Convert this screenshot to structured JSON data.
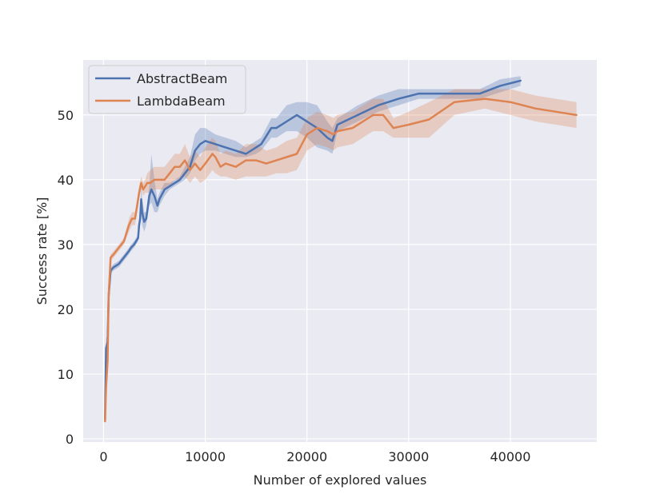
{
  "chart_data": {
    "type": "line",
    "title": "",
    "xlabel": "Number of explored values",
    "ylabel": "Success rate [%]",
    "xlim": [
      -2000,
      48500
    ],
    "ylim": [
      -0.5,
      58.5
    ],
    "xticks": [
      0,
      10000,
      20000,
      30000,
      40000
    ],
    "xtick_labels": [
      "0",
      "10000",
      "20000",
      "30000",
      "40000"
    ],
    "yticks": [
      0,
      10,
      20,
      30,
      40,
      50
    ],
    "ytick_labels": [
      "0",
      "10",
      "20",
      "30",
      "40",
      "50"
    ],
    "grid": true,
    "legend_position": "top-left",
    "series": [
      {
        "name": "AbstractBeam",
        "color": "#4c72b0",
        "x": [
          150,
          250,
          400,
          500,
          700,
          1000,
          1500,
          2000,
          2500,
          2700,
          3000,
          3200,
          3400,
          3500,
          3600,
          3700,
          3800,
          4000,
          4200,
          4500,
          4700,
          5000,
          5300,
          5500,
          6000,
          6500,
          7000,
          7500,
          8000,
          8500,
          9000,
          9500,
          10000,
          11000,
          12000,
          13000,
          14000,
          15000,
          15500,
          16500,
          17000,
          18000,
          19000,
          20000,
          21000,
          22000,
          22500,
          23000,
          25000,
          27000,
          29000,
          31000,
          33000,
          35000,
          37000,
          39000,
          41000
        ],
        "y": [
          3,
          14,
          15,
          22,
          26,
          26.5,
          27,
          28,
          29,
          29.5,
          30,
          30.5,
          31,
          33,
          34,
          37,
          35,
          33.5,
          34,
          37.5,
          38.5,
          37.5,
          36,
          37,
          38.5,
          39,
          39.5,
          40,
          41,
          42,
          44.5,
          45.5,
          46,
          45.5,
          45,
          44.5,
          44,
          45,
          45.5,
          48,
          48,
          49,
          50,
          49,
          48,
          46.5,
          46,
          48.5,
          50,
          51.5,
          52.5,
          53.3,
          53.3,
          53.3,
          53.3,
          54.5,
          55.3
        ],
        "lower": [
          2.5,
          12.5,
          14,
          21,
          25.5,
          26,
          26.5,
          27.5,
          28.5,
          29,
          29.5,
          30,
          30.5,
          32,
          33,
          35,
          33,
          32,
          33,
          36,
          36.5,
          35,
          35,
          36,
          37.5,
          38.5,
          39,
          39.5,
          40,
          41,
          43,
          44,
          44.5,
          44.5,
          44,
          43.5,
          43.5,
          44,
          44.5,
          46.5,
          46.5,
          47.5,
          47.5,
          46.5,
          45,
          44.5,
          44,
          47.5,
          49,
          50.5,
          51.5,
          52.5,
          52.5,
          52.5,
          52.5,
          53.5,
          54.5
        ],
        "upper": [
          3.5,
          15.5,
          16,
          23,
          26.5,
          27,
          27.5,
          28.5,
          29.5,
          30,
          30.5,
          31,
          31.5,
          34,
          35.5,
          39,
          37,
          35,
          35,
          39,
          44,
          40,
          37,
          38,
          39.5,
          39.5,
          40,
          40.5,
          42,
          43.5,
          47,
          48,
          48,
          47,
          46.5,
          46,
          45,
          46,
          46.5,
          49.5,
          49.5,
          51.5,
          52,
          52,
          51.5,
          49,
          48,
          49.5,
          51.5,
          53,
          54,
          54,
          54,
          54,
          54,
          55.5,
          56
        ]
      },
      {
        "name": "LambdaBeam",
        "color": "#dd8452",
        "x": [
          150,
          250,
          400,
          500,
          700,
          1000,
          1500,
          2000,
          2500,
          2800,
          3100,
          3300,
          3500,
          3700,
          3900,
          4100,
          4300,
          4600,
          5000,
          5500,
          6000,
          6500,
          7000,
          7500,
          8000,
          8500,
          9000,
          9500,
          10000,
          10700,
          11000,
          11500,
          12000,
          13000,
          14000,
          15000,
          16000,
          17000,
          18000,
          19000,
          20000,
          21000,
          22000,
          22600,
          23000,
          24500,
          26500,
          27500,
          28500,
          30000,
          32000,
          34500,
          37500,
          40000,
          42500,
          44500,
          46500
        ],
        "y": [
          2.7,
          8,
          12,
          22,
          28,
          28.5,
          29.5,
          30.5,
          33,
          34,
          34,
          36,
          38,
          39.5,
          38.5,
          39,
          39.5,
          39.5,
          40,
          40,
          40,
          41,
          42,
          42,
          43,
          41.5,
          42.5,
          41.5,
          42.5,
          44,
          43.5,
          42,
          42.5,
          42,
          43,
          43,
          42.5,
          43,
          43.5,
          44,
          47,
          48,
          47.5,
          47,
          47.5,
          48,
          50,
          50,
          48,
          48.5,
          49.3,
          52,
          52.5,
          52,
          51,
          50.5,
          50
        ],
        "lower": [
          2,
          7,
          11,
          21,
          27.5,
          28,
          29,
          30,
          32,
          33,
          33,
          35,
          37,
          38.5,
          37.5,
          38,
          38,
          38,
          38.5,
          38.5,
          38.5,
          39,
          40,
          40,
          40.5,
          39.5,
          40.5,
          39.5,
          40,
          41.5,
          41,
          40.5,
          40.5,
          40,
          40.5,
          40.5,
          40.5,
          41,
          41,
          41.5,
          44.5,
          45.5,
          45,
          44.5,
          45,
          45.5,
          47.5,
          47.5,
          46.5,
          46.5,
          46.5,
          50,
          51,
          50,
          49,
          48.5,
          48
        ],
        "upper": [
          3.5,
          9,
          13,
          23,
          28.5,
          29,
          30,
          31,
          34,
          35,
          35,
          37,
          39,
          40.5,
          39.5,
          40,
          41,
          41.5,
          42,
          42,
          42,
          43,
          44,
          44,
          45.5,
          43.5,
          44.5,
          43.5,
          45,
          46.5,
          46,
          44,
          44.5,
          44,
          45.5,
          45.5,
          44.5,
          45,
          46,
          46.5,
          49.5,
          50.5,
          50,
          49.5,
          50,
          50.5,
          52.5,
          52.5,
          49.5,
          50.5,
          52,
          54,
          54,
          54,
          53,
          52.5,
          52
        ]
      }
    ]
  }
}
